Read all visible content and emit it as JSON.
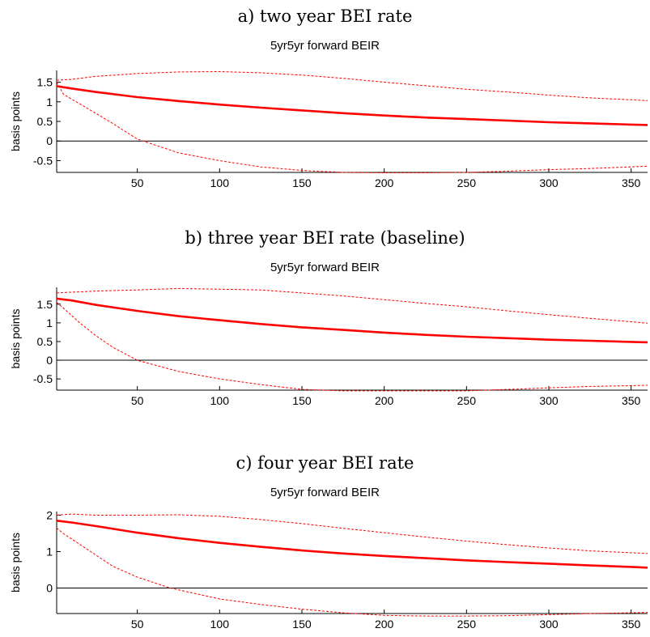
{
  "panels": [
    {
      "heading": "a) two year BEI rate",
      "chart_title": "5yr5yr forward BEIR",
      "ylabel": "basis points"
    },
    {
      "heading": "b) three year BEI rate (baseline)",
      "chart_title": "5yr5yr forward BEIR",
      "ylabel": "basis points"
    },
    {
      "heading": "c) four year BEI rate",
      "chart_title": "5yr5yr forward BEIR",
      "ylabel": "basis points"
    }
  ],
  "colors": {
    "response": "#ff0000",
    "band": "#ff0000",
    "zero_line": "#000000"
  },
  "chart_data": [
    {
      "type": "line",
      "title": "5yr5yr forward BEIR",
      "xlabel": "",
      "ylabel": "basis points",
      "xlim": [
        1,
        360
      ],
      "ylim": [
        -0.8,
        1.8
      ],
      "xticks": [
        50,
        100,
        150,
        200,
        250,
        300,
        350
      ],
      "yticks": [
        -0.5,
        0,
        0.5,
        1,
        1.5
      ],
      "ytick_labels": [
        "-0.5",
        "0",
        "0.5",
        "1",
        "1.5"
      ],
      "grid": false,
      "series": [
        {
          "role": "response",
          "style": "solid",
          "x": [
            1,
            10,
            25,
            50,
            75,
            100,
            125,
            150,
            175,
            200,
            225,
            250,
            275,
            300,
            325,
            350,
            360
          ],
          "y": [
            1.4,
            1.34,
            1.25,
            1.12,
            1.02,
            0.93,
            0.85,
            0.78,
            0.71,
            0.65,
            0.6,
            0.56,
            0.52,
            0.48,
            0.45,
            0.42,
            0.41
          ]
        },
        {
          "role": "upper",
          "style": "dashed",
          "x": [
            1,
            10,
            25,
            50,
            75,
            100,
            125,
            150,
            175,
            200,
            225,
            250,
            275,
            300,
            325,
            350,
            360
          ],
          "y": [
            1.55,
            1.57,
            1.65,
            1.72,
            1.76,
            1.77,
            1.74,
            1.68,
            1.6,
            1.5,
            1.41,
            1.32,
            1.25,
            1.17,
            1.1,
            1.05,
            1.03
          ]
        },
        {
          "role": "lower",
          "style": "dashed",
          "x": [
            1,
            5,
            10,
            15,
            25,
            35,
            50,
            75,
            100,
            125,
            150,
            175,
            200,
            225,
            250,
            275,
            300,
            325,
            350,
            360
          ],
          "y": [
            1.5,
            1.2,
            1.07,
            0.95,
            0.7,
            0.45,
            0.05,
            -0.3,
            -0.5,
            -0.66,
            -0.75,
            -0.8,
            -0.81,
            -0.81,
            -0.8,
            -0.77,
            -0.73,
            -0.7,
            -0.66,
            -0.64
          ]
        }
      ]
    },
    {
      "type": "line",
      "title": "5yr5yr forward BEIR",
      "xlabel": "",
      "ylabel": "basis points",
      "xlim": [
        1,
        360
      ],
      "ylim": [
        -0.8,
        1.95
      ],
      "xticks": [
        50,
        100,
        150,
        200,
        250,
        300,
        350
      ],
      "yticks": [
        -0.5,
        0,
        0.5,
        1,
        1.5
      ],
      "ytick_labels": [
        "-0.5",
        "0",
        "0.5",
        "1",
        "1.5"
      ],
      "grid": false,
      "series": [
        {
          "role": "response",
          "style": "solid",
          "x": [
            1,
            10,
            25,
            50,
            75,
            100,
            125,
            150,
            175,
            200,
            225,
            250,
            275,
            300,
            325,
            350,
            360
          ],
          "y": [
            1.65,
            1.6,
            1.48,
            1.32,
            1.18,
            1.07,
            0.97,
            0.88,
            0.81,
            0.74,
            0.68,
            0.63,
            0.59,
            0.55,
            0.52,
            0.49,
            0.48
          ]
        },
        {
          "role": "upper",
          "style": "dashed",
          "x": [
            1,
            10,
            25,
            50,
            75,
            100,
            125,
            150,
            175,
            200,
            225,
            250,
            275,
            300,
            325,
            350,
            360
          ],
          "y": [
            1.8,
            1.82,
            1.85,
            1.88,
            1.92,
            1.9,
            1.88,
            1.8,
            1.72,
            1.62,
            1.52,
            1.43,
            1.32,
            1.22,
            1.12,
            1.03,
            0.99
          ]
        },
        {
          "role": "lower",
          "style": "dashed",
          "x": [
            1,
            5,
            10,
            15,
            25,
            35,
            50,
            75,
            100,
            125,
            150,
            175,
            200,
            225,
            250,
            275,
            300,
            325,
            350,
            360
          ],
          "y": [
            1.55,
            1.4,
            1.2,
            1.0,
            0.65,
            0.35,
            0.0,
            -0.3,
            -0.5,
            -0.65,
            -0.78,
            -0.82,
            -0.82,
            -0.82,
            -0.82,
            -0.78,
            -0.74,
            -0.7,
            -0.68,
            -0.67
          ]
        }
      ]
    },
    {
      "type": "line",
      "title": "5yr5yr forward BEIR",
      "xlabel": "",
      "ylabel": "basis points",
      "xlim": [
        1,
        360
      ],
      "ylim": [
        -0.7,
        2.1
      ],
      "xticks": [
        50,
        100,
        150,
        200,
        250,
        300,
        350
      ],
      "yticks": [
        0,
        1,
        2
      ],
      "ytick_labels": [
        "0",
        "1",
        "2"
      ],
      "grid": false,
      "series": [
        {
          "role": "response",
          "style": "solid",
          "x": [
            1,
            10,
            25,
            50,
            75,
            100,
            125,
            150,
            175,
            200,
            225,
            250,
            275,
            300,
            325,
            350,
            360
          ],
          "y": [
            1.85,
            1.8,
            1.7,
            1.52,
            1.37,
            1.24,
            1.13,
            1.03,
            0.95,
            0.88,
            0.82,
            0.76,
            0.71,
            0.67,
            0.62,
            0.58,
            0.56
          ]
        },
        {
          "role": "upper",
          "style": "dashed",
          "x": [
            1,
            10,
            25,
            50,
            75,
            100,
            125,
            150,
            175,
            200,
            225,
            250,
            275,
            300,
            325,
            350,
            360
          ],
          "y": [
            2.0,
            2.03,
            2.0,
            2.0,
            2.01,
            1.97,
            1.88,
            1.77,
            1.64,
            1.52,
            1.4,
            1.29,
            1.19,
            1.1,
            1.02,
            0.97,
            0.95
          ]
        },
        {
          "role": "lower",
          "style": "dashed",
          "x": [
            1,
            5,
            10,
            15,
            25,
            35,
            50,
            70,
            100,
            125,
            150,
            175,
            200,
            225,
            250,
            275,
            300,
            325,
            350,
            360
          ],
          "y": [
            1.65,
            1.5,
            1.35,
            1.2,
            0.9,
            0.6,
            0.3,
            0.0,
            -0.3,
            -0.45,
            -0.58,
            -0.68,
            -0.75,
            -0.77,
            -0.77,
            -0.76,
            -0.73,
            -0.7,
            -0.68,
            -0.67
          ]
        }
      ]
    }
  ]
}
